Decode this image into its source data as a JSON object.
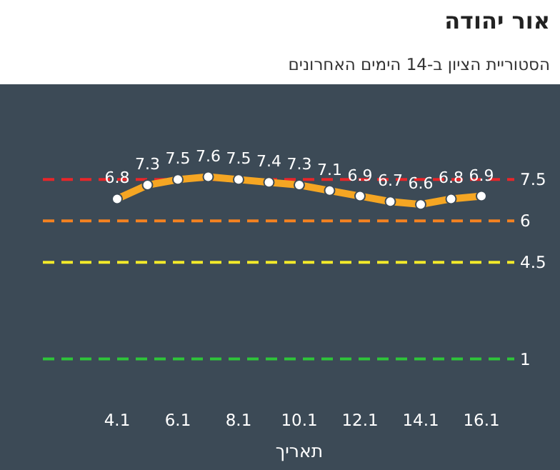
{
  "chart_data": {
    "type": "line",
    "title": "אור יהודה",
    "subtitle": "הסטוריית הציון ב-14 הימים האחרונים",
    "xlabel": "תאריך",
    "categories": [
      "4.1",
      null,
      "6.1",
      null,
      "8.1",
      null,
      "10.1",
      null,
      "12.1",
      null,
      "14.1",
      null,
      "16.1"
    ],
    "series": [
      {
        "color": "#f5a623",
        "values": [
          6.8,
          7.3,
          7.5,
          7.6,
          7.5,
          7.4,
          7.3,
          7.1,
          6.9,
          6.7,
          6.6,
          6.8,
          6.9
        ]
      }
    ],
    "data_labels": true,
    "marker": "circle",
    "line_style": "solid",
    "tick_labels": "x",
    "ref_lines": [
      {
        "axis": "y",
        "value": 7.5,
        "label": "7.5",
        "color": "#e8262a",
        "line_style": "dashed"
      },
      {
        "axis": "y",
        "value": 6,
        "label": "6",
        "color": "#f58220",
        "line_style": "dashed"
      },
      {
        "axis": "y",
        "value": 4.5,
        "label": "4.5",
        "color": "#f2ea2a",
        "line_style": "dashed"
      },
      {
        "axis": "y",
        "value": 1,
        "label": "1",
        "color": "#2ec43a",
        "line_style": "dashed"
      }
    ]
  }
}
